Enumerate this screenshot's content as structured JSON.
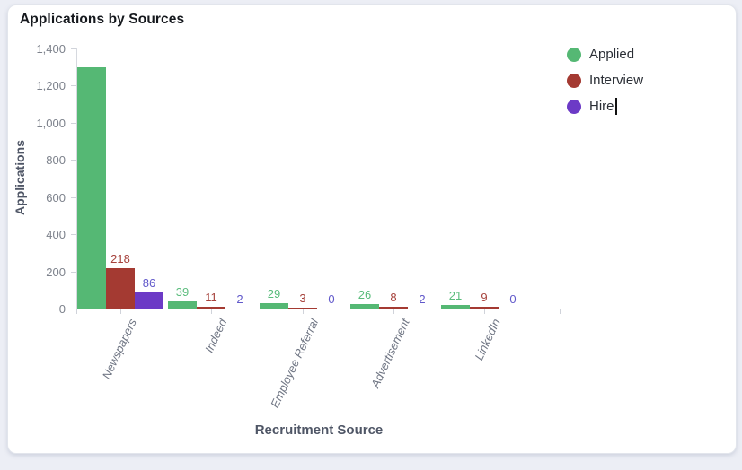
{
  "card": {
    "title": "Applications by Sources"
  },
  "chart_data": {
    "type": "bar",
    "title": "Applications by Sources",
    "xlabel": "Recruitment Source",
    "ylabel": "Applications",
    "categories": [
      "Newspapers",
      "Indeed",
      "Employee Referral",
      "Advertisement",
      "LinkedIn"
    ],
    "series": [
      {
        "name": "Applied",
        "color": "#55b874",
        "label_color": "#5abc7c",
        "values": [
          1300,
          39,
          29,
          26,
          21
        ],
        "value_labels": [
          "",
          "39",
          "29",
          "26",
          "21"
        ]
      },
      {
        "name": "Interview",
        "color": "#a43a32",
        "label_color": "#a6423c",
        "values": [
          218,
          11,
          3,
          8,
          9
        ],
        "value_labels": [
          "218",
          "11",
          "3",
          "8",
          "9"
        ]
      },
      {
        "name": "Hire",
        "color": "#6c3ac6",
        "label_color": "#6058ca",
        "values": [
          86,
          2,
          0,
          2,
          0
        ],
        "value_labels": [
          "86",
          "2",
          "0",
          "2",
          "0"
        ]
      }
    ],
    "ylim": [
      0,
      1400
    ],
    "ytick_step": 200,
    "ytick_labels": [
      "0",
      "200",
      "400",
      "600",
      "800",
      "1,000",
      "1,200",
      "1,400"
    ],
    "legend_position": "top-right",
    "grid": false
  },
  "legend": {
    "items": [
      {
        "label": "Applied",
        "color": "#55b874",
        "editing": false
      },
      {
        "label": "Interview",
        "color": "#a43a32",
        "editing": false
      },
      {
        "label": "Hire",
        "color": "#6c3ac6",
        "editing": true
      }
    ]
  }
}
